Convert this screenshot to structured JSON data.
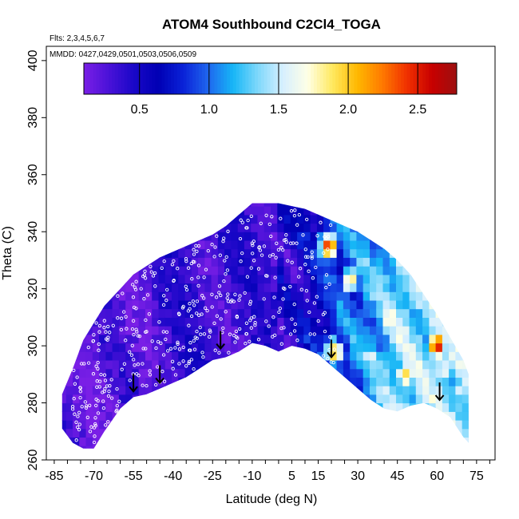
{
  "chart_data": {
    "type": "heatmap",
    "title": "ATOM4 Southbound C2Cl4_TOGA",
    "flights_note": "Flts: 2,3,4,5,6,7",
    "dates_note": "MMDD: 0427,0429,0501,0503,0506,0509",
    "xlabel": "Latitude (deg N)",
    "ylabel": "Theta (C)",
    "xlim": [
      -88,
      82
    ],
    "ylim": [
      260,
      405
    ],
    "xticks": [
      -85,
      -70,
      -55,
      -40,
      -25,
      -10,
      5,
      15,
      30,
      45,
      60,
      75
    ],
    "yticks": [
      260,
      280,
      300,
      320,
      340,
      360,
      380,
      400
    ],
    "colorbar": {
      "range": [
        0.1,
        2.78
      ],
      "ticks": [
        0.5,
        1.0,
        1.5,
        2.0,
        2.5
      ],
      "tick_labels": [
        "0.5",
        "1.0",
        "1.5",
        "2.0",
        "2.5"
      ],
      "colors": [
        "#7a1fe6",
        "#4a12d8",
        "#1a07c8",
        "#0000b4",
        "#0a22d8",
        "#1f66ee",
        "#16b6f6",
        "#7fd8fb",
        "#d6efff",
        "#ffffe6",
        "#ffe960",
        "#ffb800",
        "#ff7a00",
        "#f03000",
        "#c80000",
        "#9c1010"
      ]
    },
    "domain_boundary": {
      "lat": [
        -82,
        -78,
        -74,
        -70,
        -66,
        -60,
        -55,
        -50,
        -45,
        -40,
        -35,
        -30,
        -25,
        -20,
        -15,
        -10,
        -5,
        0,
        5,
        10,
        15,
        20,
        25,
        30,
        35,
        40,
        45,
        50,
        55,
        60,
        65,
        70,
        72
      ],
      "theta_top": [
        283,
        292,
        302,
        308,
        314,
        320,
        325,
        328,
        331,
        333,
        335,
        337,
        339,
        342,
        346,
        350,
        350,
        350,
        349,
        348,
        346,
        344,
        342,
        340,
        337,
        334,
        330,
        325,
        318,
        311,
        303,
        295,
        290
      ],
      "theta_bottom": [
        271,
        266,
        264,
        264,
        270,
        278,
        282,
        283,
        285,
        287,
        289,
        292,
        295,
        296,
        298,
        301,
        300,
        298,
        300,
        299,
        297,
        293,
        289,
        285,
        281,
        278,
        277,
        279,
        280,
        278,
        275,
        268,
        266
      ]
    },
    "hotspots": [
      {
        "lat": 60,
        "theta": 300,
        "value": 2.5
      },
      {
        "lat": 19,
        "theta": 335,
        "value": 2.4
      },
      {
        "lat": 21,
        "theta": 298,
        "value": 2.1
      },
      {
        "lat": 48,
        "theta": 290,
        "value": 2.0
      },
      {
        "lat": 42,
        "theta": 310,
        "value": 1.9
      },
      {
        "lat": 27,
        "theta": 323,
        "value": 1.9
      },
      {
        "lat": 55,
        "theta": 283,
        "value": 1.8
      },
      {
        "lat": 62,
        "theta": 292,
        "value": 1.7
      },
      {
        "lat": 35,
        "theta": 296,
        "value": 1.7
      },
      {
        "lat": 68,
        "theta": 285,
        "value": 1.6
      }
    ],
    "arrows": [
      {
        "lat": -55,
        "theta": 284
      },
      {
        "lat": -45,
        "theta": 287
      },
      {
        "lat": -22,
        "theta": 299
      },
      {
        "lat": 20,
        "theta": 296
      },
      {
        "lat": 61,
        "theta": 281
      }
    ]
  }
}
